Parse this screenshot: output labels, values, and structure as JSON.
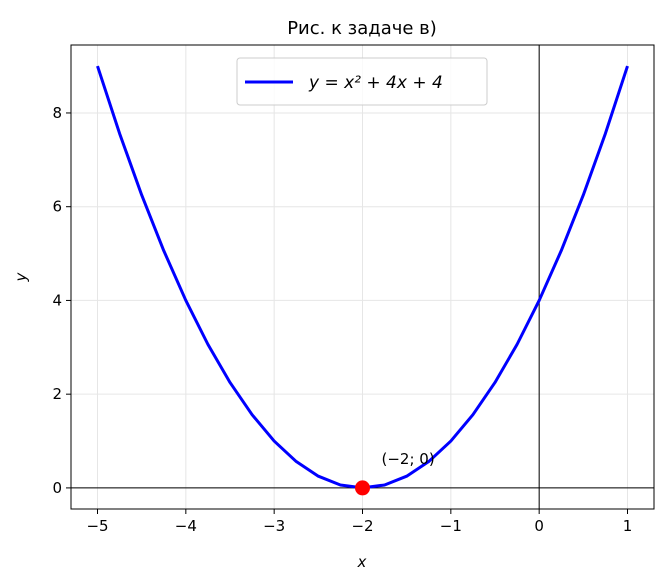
{
  "chart_data": {
    "type": "line",
    "title": "Рис. к задаче в)",
    "xlabel": "x",
    "ylabel": "y",
    "x": [
      -5,
      -4.75,
      -4.5,
      -4.25,
      -4,
      -3.75,
      -3.5,
      -3.25,
      -3,
      -2.75,
      -2.5,
      -2.25,
      -2,
      -1.75,
      -1.5,
      -1.25,
      -1,
      -0.75,
      -0.5,
      -0.25,
      0,
      0.25,
      0.5,
      0.75,
      1
    ],
    "series": [
      {
        "name": "y = x² + 4x + 4",
        "color": "#0000ff",
        "values": [
          9,
          7.5625,
          6.25,
          5.0625,
          4,
          3.0625,
          2.25,
          1.5625,
          1,
          0.5625,
          0.25,
          0.0625,
          0,
          0.0625,
          0.25,
          0.5625,
          1,
          1.5625,
          2.25,
          3.0625,
          4,
          5.0625,
          6.25,
          7.5625,
          9
        ]
      }
    ],
    "marker": {
      "x": -2,
      "y": 0,
      "color": "#ff0000"
    },
    "annotation": "(−2; 0)",
    "axhline": 0,
    "axvline": 0,
    "xlim": [
      -5.3,
      1.3
    ],
    "ylim": [
      -0.45,
      9.45
    ],
    "xticks": [
      {
        "value": -5,
        "label": "−5"
      },
      {
        "value": -4,
        "label": "−4"
      },
      {
        "value": -3,
        "label": "−3"
      },
      {
        "value": -2,
        "label": "−2"
      },
      {
        "value": -1,
        "label": "−1"
      },
      0,
      1
    ],
    "yticks": [
      0,
      2,
      4,
      6,
      8
    ],
    "grid": true,
    "legend": "upper center"
  }
}
